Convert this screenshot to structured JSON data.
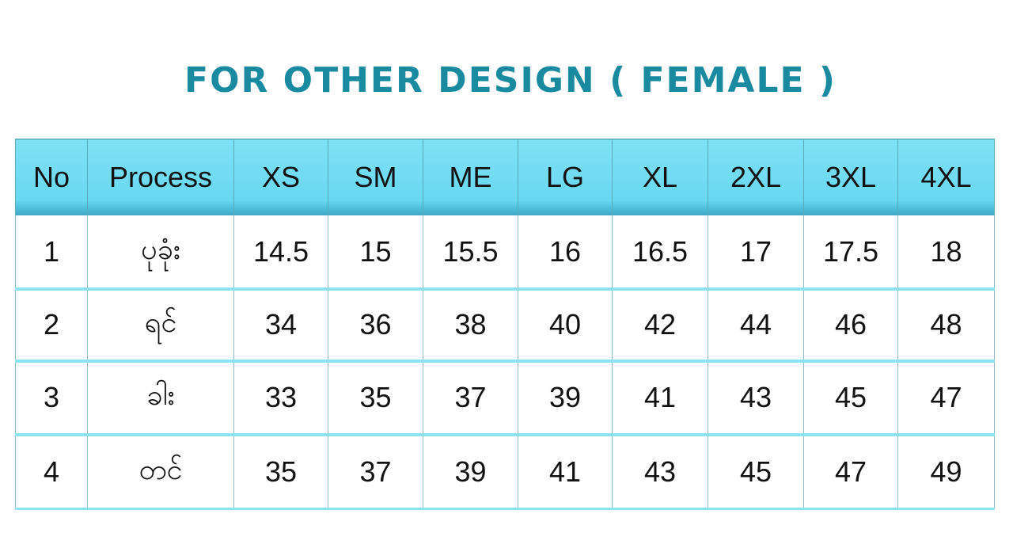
{
  "title": "FOR OTHER DESIGN ( FEMALE )",
  "headers": [
    "No",
    "Process",
    "XS",
    "SM",
    "ME",
    "LG",
    "XL",
    "2XL",
    "3XL",
    "4XL"
  ],
  "rows": [
    [
      "1",
      "ပုခုံး",
      "14.5",
      "15",
      "15.5",
      "16",
      "16.5",
      "17",
      "17.5",
      "18"
    ],
    [
      "2",
      "ရင်",
      "34",
      "36",
      "38",
      "40",
      "42",
      "44",
      "46",
      "48"
    ],
    [
      "3",
      "ခါး",
      "33",
      "35",
      "37",
      "39",
      "41",
      "43",
      "45",
      "47"
    ],
    [
      "4",
      "တင်",
      "35",
      "37",
      "39",
      "41",
      "43",
      "45",
      "47",
      "49"
    ]
  ],
  "colors": {
    "title": "#1a8aa0",
    "header_bg": "#68d8f1",
    "row_divider": "#8de2f3"
  }
}
